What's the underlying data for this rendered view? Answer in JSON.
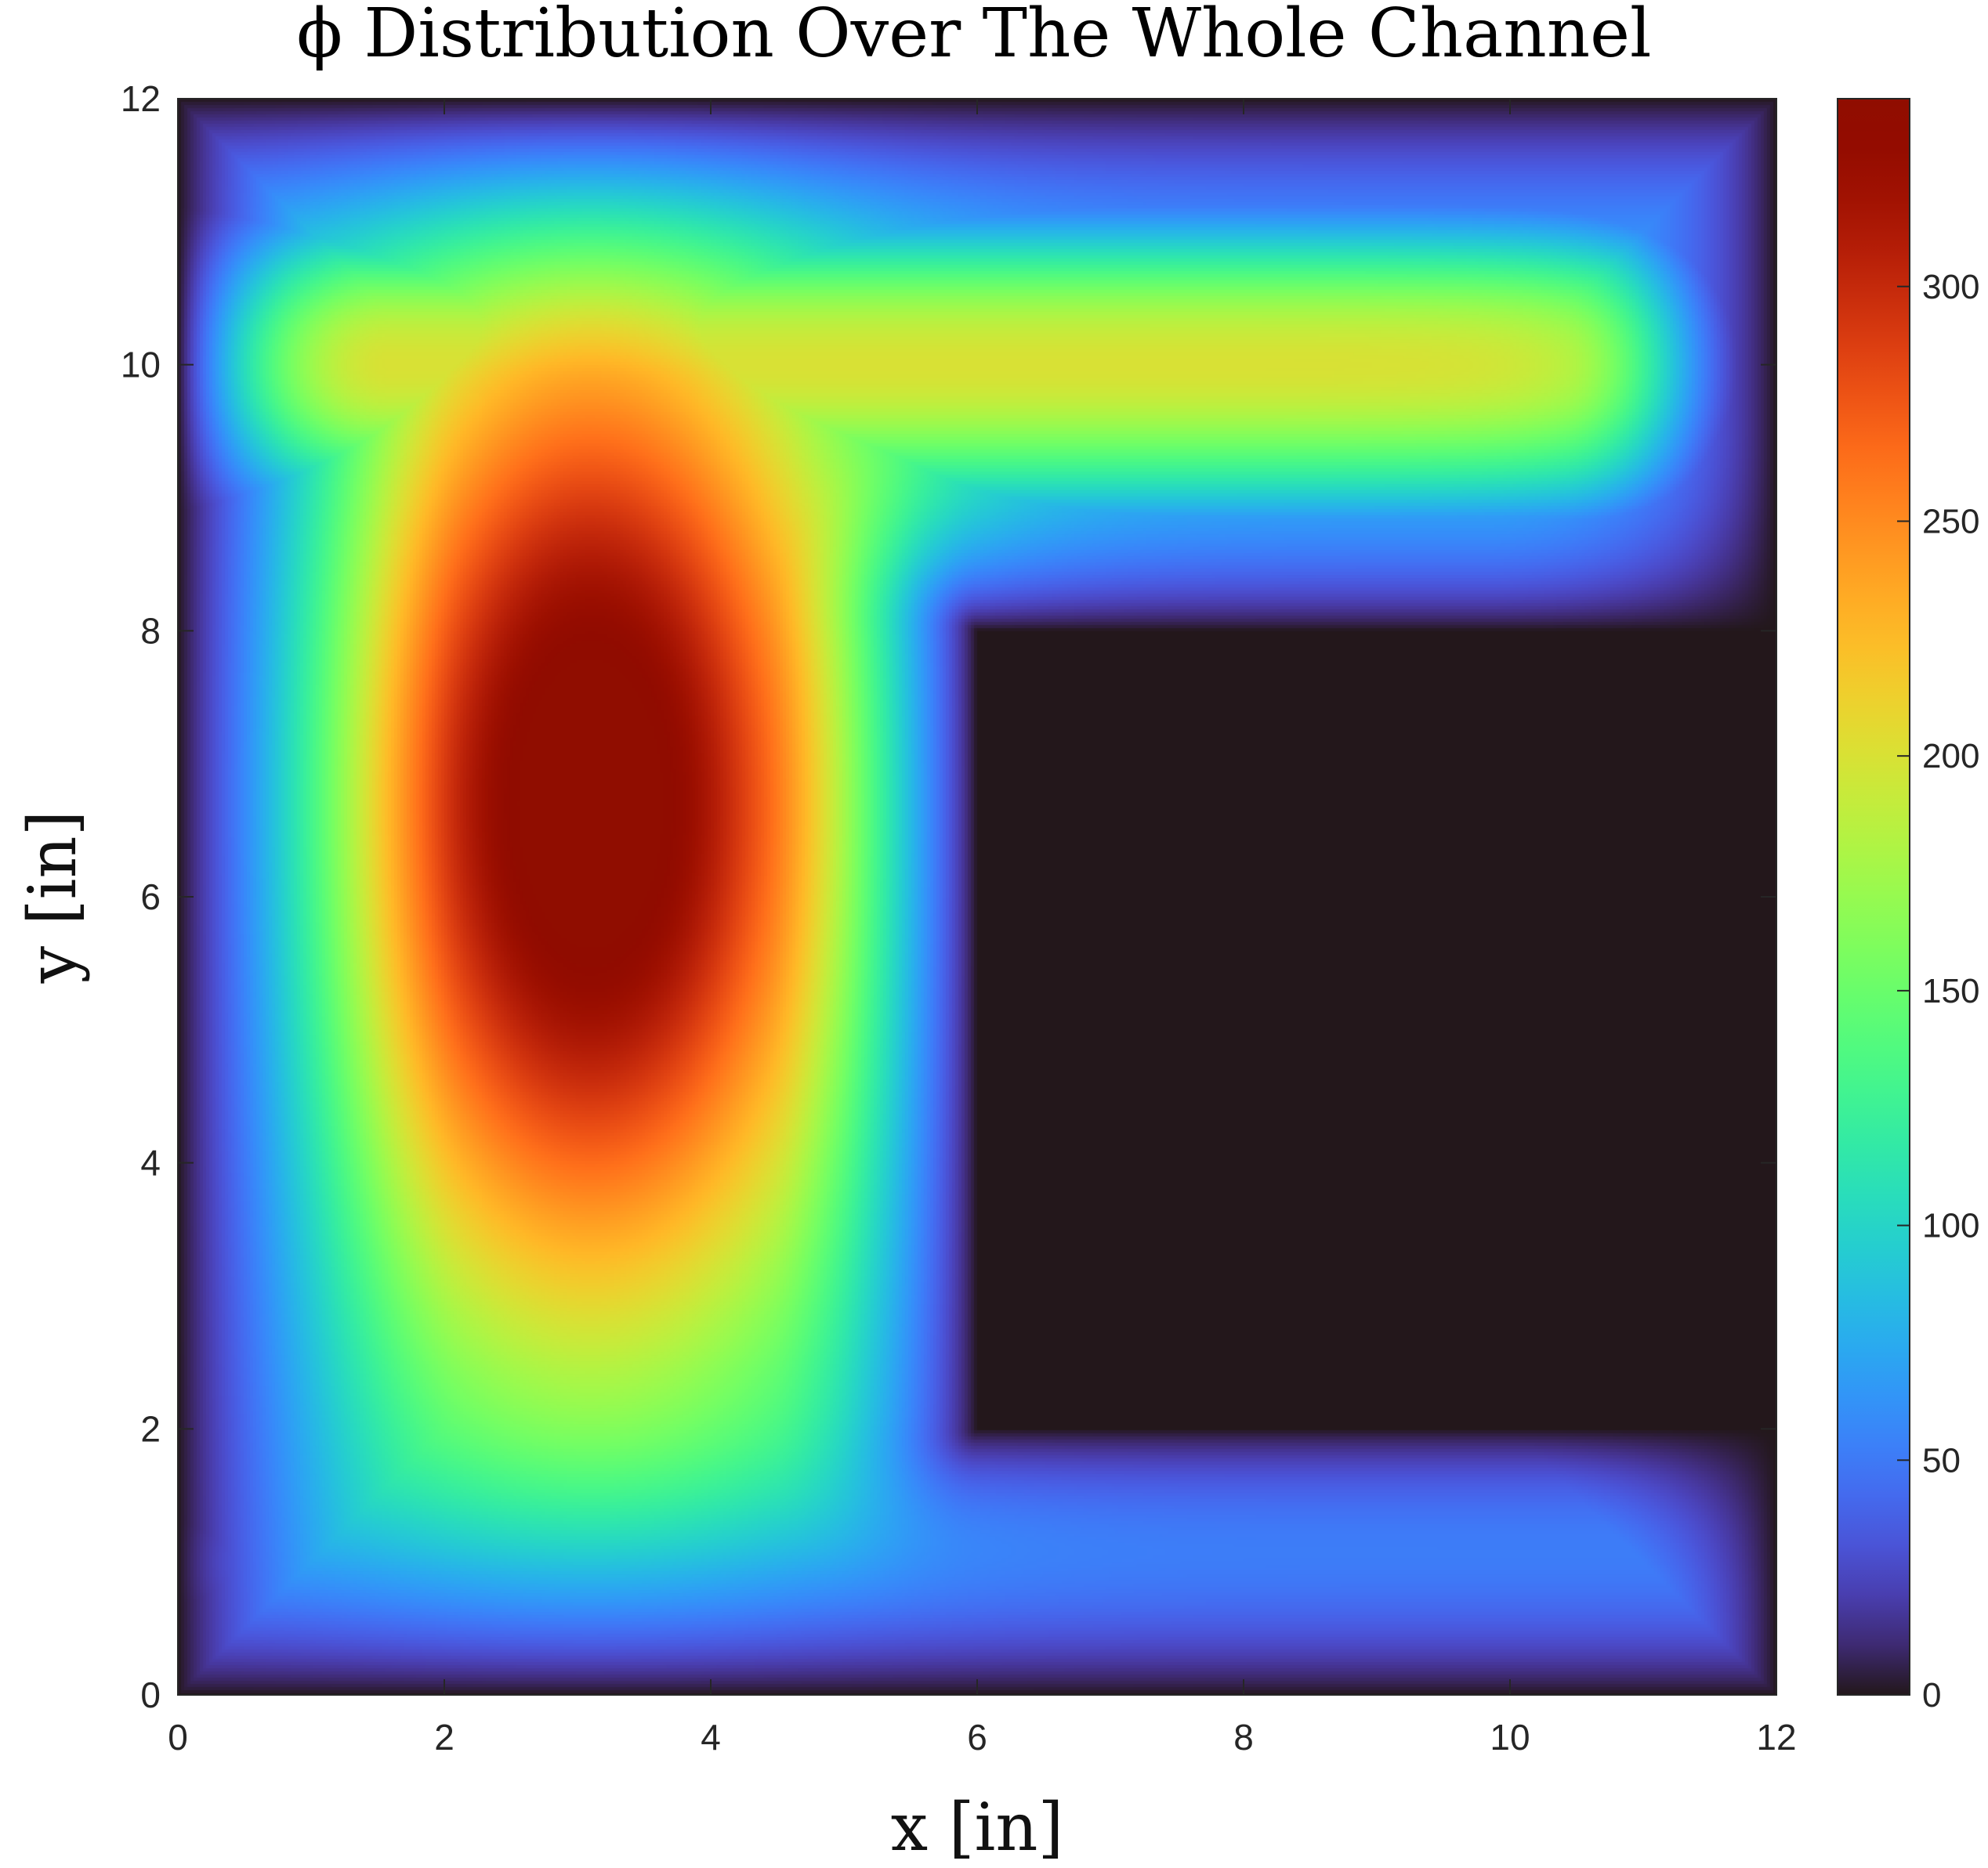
{
  "chart_data": {
    "type": "heatmap",
    "title": "ϕ Distribution Over The Whole Channel",
    "xlabel": "x [in]",
    "ylabel": "y [in]",
    "xlim": [
      0,
      12
    ],
    "ylim": [
      0,
      12
    ],
    "x_ticks": [
      0,
      2,
      4,
      6,
      8,
      10,
      12
    ],
    "y_ticks": [
      0,
      2,
      4,
      6,
      8,
      10,
      12
    ],
    "colorbar": {
      "range": [
        0,
        340
      ],
      "ticks": [
        0,
        50,
        100,
        150,
        200,
        250,
        300
      ],
      "colormap": "turbo"
    },
    "solid_region": {
      "x": [
        6,
        12
      ],
      "y": [
        2,
        8
      ],
      "value": 0
    },
    "peak": {
      "x": 3.1,
      "y": 6.7,
      "value": 340
    },
    "grid": false
  }
}
